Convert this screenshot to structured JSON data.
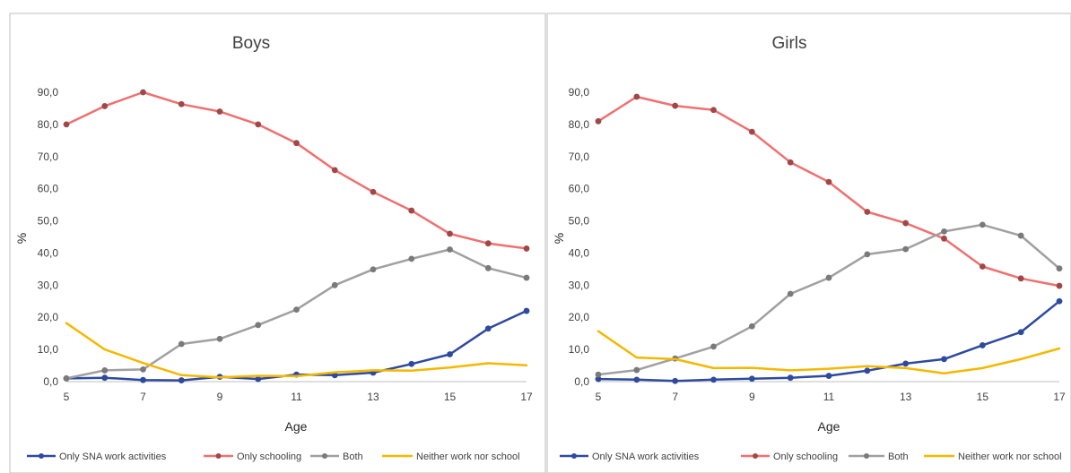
{
  "colors": {
    "only_sna": "#2E4A9E",
    "only_school": "#F07070",
    "only_school_marker": "#A04848",
    "both": "#A0A0A0",
    "both_marker": "#7A7A7A",
    "neither": "#F5B800"
  },
  "chart_data": [
    {
      "type": "line",
      "title": "Boys",
      "xlabel": "Age",
      "ylabel": "%",
      "x": [
        5,
        6,
        7,
        8,
        9,
        10,
        11,
        12,
        13,
        14,
        15,
        16,
        17
      ],
      "xticks": [
        "5",
        "7",
        "9",
        "11",
        "13",
        "15",
        "17"
      ],
      "yticks": [
        "0,0",
        "10,0",
        "20,0",
        "30,0",
        "40,0",
        "50,0",
        "60,0",
        "70,0",
        "80,0",
        "90,0"
      ],
      "ylim": [
        0,
        90
      ],
      "legend_position": "bottom",
      "series": [
        {
          "name": "Only SNA work activities",
          "color_key": "only_sna",
          "marker": true,
          "values": [
            1.0,
            1.2,
            0.5,
            0.4,
            1.5,
            0.8,
            2.2,
            2.0,
            2.8,
            5.5,
            8.5,
            16.5,
            22.0
          ]
        },
        {
          "name": "Only schooling",
          "color_key": "only_school",
          "marker": true,
          "values": [
            80.0,
            85.7,
            90.0,
            86.3,
            84.0,
            80.0,
            74.2,
            65.8,
            59.0,
            53.2,
            46.0,
            43.0,
            41.4
          ]
        },
        {
          "name": "Both",
          "color_key": "both",
          "marker": true,
          "values": [
            1.0,
            3.5,
            3.8,
            11.7,
            13.3,
            17.6,
            22.4,
            30.0,
            34.9,
            38.2,
            41.1,
            35.3,
            32.3
          ]
        },
        {
          "name": "Neither work nor school",
          "color_key": "neither",
          "marker": false,
          "values": [
            18.2,
            10.0,
            5.8,
            2.0,
            1.3,
            1.8,
            1.7,
            2.9,
            3.5,
            3.4,
            4.4,
            5.7,
            5.1
          ]
        }
      ]
    },
    {
      "type": "line",
      "title": "Girls",
      "xlabel": "Age",
      "ylabel": "%",
      "x": [
        5,
        6,
        7,
        8,
        9,
        10,
        11,
        12,
        13,
        14,
        15,
        16,
        17
      ],
      "xticks": [
        "5",
        "7",
        "9",
        "11",
        "13",
        "15",
        "17"
      ],
      "yticks": [
        "0,0",
        "10,0",
        "20,0",
        "30,0",
        "40,0",
        "50,0",
        "60,0",
        "70,0",
        "80,0",
        "90,0"
      ],
      "ylim": [
        0,
        90
      ],
      "legend_position": "bottom",
      "series": [
        {
          "name": "Only SNA work activities",
          "color_key": "only_sna",
          "marker": true,
          "values": [
            0.8,
            0.6,
            0.2,
            0.6,
            0.9,
            1.2,
            1.8,
            3.4,
            5.6,
            7.0,
            11.3,
            15.4,
            25.0
          ]
        },
        {
          "name": "Only schooling",
          "color_key": "only_school",
          "marker": true,
          "values": [
            81.0,
            88.6,
            85.8,
            84.5,
            77.7,
            68.2,
            62.1,
            52.8,
            49.3,
            44.5,
            35.8,
            32.1,
            29.8
          ]
        },
        {
          "name": "Both",
          "color_key": "both",
          "marker": true,
          "values": [
            2.2,
            3.6,
            7.2,
            10.9,
            17.2,
            27.3,
            32.3,
            39.6,
            41.2,
            46.7,
            48.8,
            45.4,
            35.2
          ]
        },
        {
          "name": "Neither work nor school",
          "color_key": "neither",
          "marker": false,
          "values": [
            15.7,
            7.5,
            7.0,
            4.2,
            4.3,
            3.5,
            4.0,
            4.8,
            4.2,
            2.6,
            4.2,
            7.0,
            10.3
          ]
        }
      ]
    }
  ]
}
